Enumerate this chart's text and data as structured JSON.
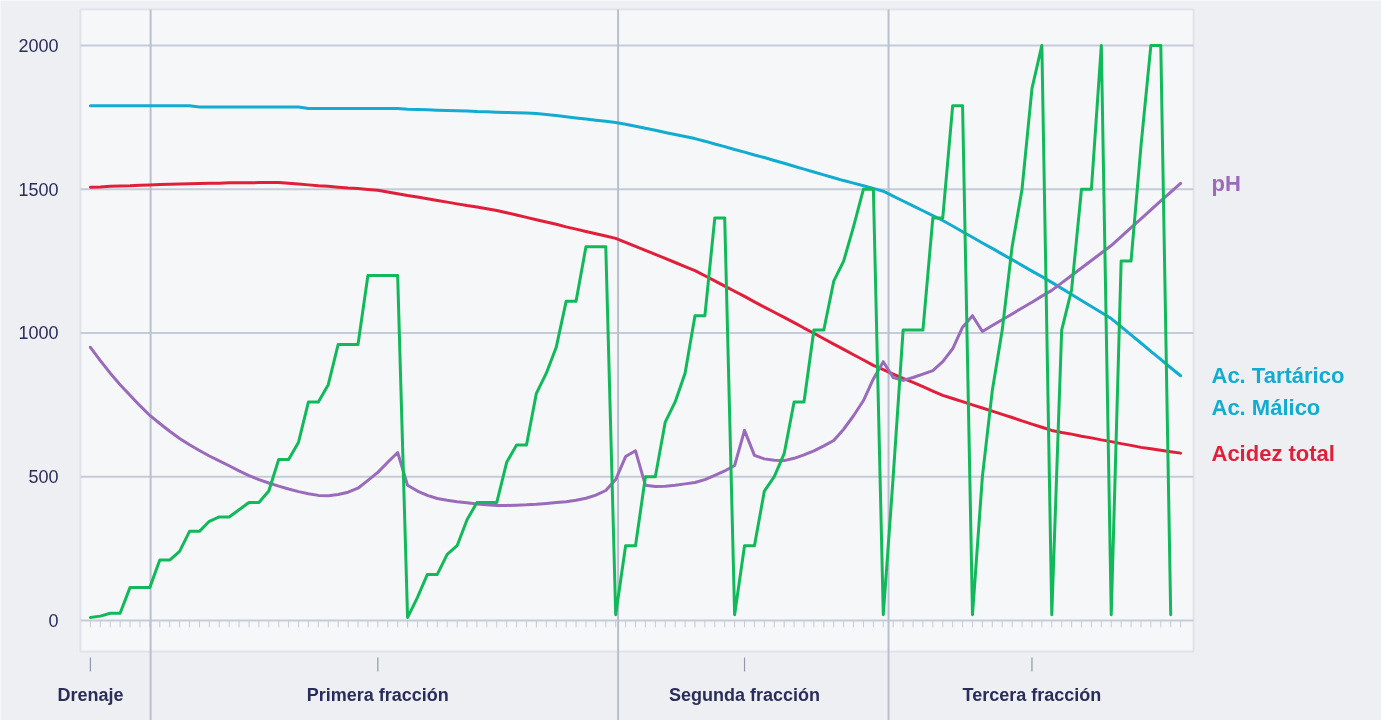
{
  "chart_data": {
    "type": "line",
    "categories": [
      "Drenaje",
      null,
      null,
      null,
      null,
      null,
      null,
      null,
      null,
      null,
      null,
      null,
      null,
      null,
      null,
      null,
      null,
      null,
      null,
      null,
      null,
      null,
      null,
      null,
      null,
      null,
      null,
      null,
      null,
      "Primera fracción",
      null,
      null,
      null,
      null,
      null,
      null,
      null,
      null,
      null,
      null,
      null,
      null,
      null,
      null,
      null,
      null,
      null,
      null,
      null,
      null,
      null,
      null,
      null,
      null,
      null,
      null,
      null,
      null,
      null,
      null,
      null,
      null,
      null,
      null,
      null,
      null,
      "Segunda fracción",
      null,
      null,
      null,
      null,
      null,
      null,
      null,
      null,
      null,
      null,
      null,
      null,
      null,
      null,
      null,
      null,
      null,
      null,
      null,
      null,
      null,
      null,
      null,
      null,
      null,
      null,
      null,
      null,
      "Tercera fracción",
      null,
      null,
      null,
      null,
      null,
      null,
      null,
      null,
      null,
      null,
      null,
      null,
      null,
      null,
      null
    ],
    "ylim": [
      -108,
      2125
    ],
    "yticks": [
      0,
      500,
      1000,
      1500,
      2000
    ],
    "grid": "y",
    "series": [
      {
        "name": "Ac. Tartárico",
        "color": "#12acd0",
        "values": [
          1790,
          1790,
          1790,
          1790,
          1790,
          1790,
          1790,
          1790,
          1790,
          1790,
          1790,
          1786,
          1786,
          1786,
          1786,
          1786,
          1786,
          1786,
          1786,
          1786,
          1786,
          1786,
          1781,
          1781,
          1781,
          1781,
          1781,
          1781,
          1781,
          1781,
          1781,
          1781,
          1778,
          1777,
          1776,
          1775,
          1774,
          1773,
          1772,
          1770,
          1769,
          1768,
          1767,
          1766,
          1765,
          1763,
          1760,
          1756,
          1752,
          1748,
          1744,
          1740,
          1736,
          1732,
          1726,
          1719,
          1712,
          1705,
          1697,
          1690,
          1683,
          1676,
          1667,
          1657,
          1648,
          1638,
          1629,
          1619,
          1610,
          1600,
          1590,
          1580,
          1570,
          1560,
          1550,
          1540,
          1530,
          1521,
          1512,
          1503,
          1493,
          1476,
          1459,
          1442,
          1425,
          1408,
          1391,
          1372,
          1352,
          1333,
          1313,
          1294,
          1274,
          1255,
          1235,
          1215,
          1196,
          1176,
          1155,
          1134,
          1113,
          1092,
          1071,
          1050,
          1022,
          993,
          965,
          936,
          908,
          879,
          851
        ]
      },
      {
        "name": "Acidez total",
        "color": "#e0203a",
        "values": [
          1507,
          1508,
          1510,
          1511,
          1512,
          1514,
          1515,
          1516,
          1517,
          1518,
          1519,
          1520,
          1521,
          1521,
          1522,
          1522,
          1522,
          1523,
          1523,
          1523,
          1521,
          1518,
          1515,
          1512,
          1510,
          1507,
          1504,
          1502,
          1499,
          1496,
          1490,
          1484,
          1478,
          1473,
          1467,
          1461,
          1455,
          1449,
          1443,
          1438,
          1432,
          1426,
          1418,
          1410,
          1402,
          1394,
          1386,
          1378,
          1369,
          1361,
          1353,
          1345,
          1337,
          1329,
          1315,
          1301,
          1287,
          1273,
          1259,
          1245,
          1231,
          1217,
          1199,
          1181,
          1163,
          1145,
          1127,
          1108,
          1090,
          1072,
          1054,
          1036,
          1017,
          999,
          980,
          961,
          943,
          924,
          906,
          887,
          872,
          857,
          842,
          828,
          813,
          798,
          783,
          772,
          761,
          750,
          739,
          728,
          717,
          706,
          694,
          683,
          672,
          661,
          654,
          648,
          641,
          635,
          628,
          622,
          615,
          609,
          602,
          597,
          592,
          587,
          582
        ]
      },
      {
        "name": "pH",
        "color": "#9b6bbb",
        "values": [
          950,
          904,
          860,
          820,
          783,
          747,
          713,
          685,
          658,
          633,
          611,
          591,
          572,
          555,
          538,
          520,
          504,
          490,
          478,
          467,
          457,
          448,
          441,
          435,
          434,
          438,
          446,
          460,
          487,
          515,
          550,
          584,
          470,
          450,
          435,
          424,
          418,
          413,
          409,
          405,
          402,
          400,
          400,
          401,
          402,
          404,
          407,
          410,
          413,
          418,
          425,
          436,
          452,
          490,
          570,
          590,
          470,
          466,
          467,
          470,
          475,
          480,
          490,
          505,
          520,
          539,
          661,
          574,
          562,
          557,
          556,
          564,
          576,
          590,
          607,
          626,
          665,
          712,
          765,
          840,
          900,
          845,
          835,
          845,
          857,
          869,
          900,
          945,
          1020,
          1060,
          1005,
          1026,
          1046,
          1066,
          1087,
          1107,
          1128,
          1148,
          1174,
          1200,
          1226,
          1252,
          1278,
          1304,
          1335,
          1366,
          1397,
          1428,
          1459,
          1490,
          1520
        ]
      },
      {
        "color": "#12b95a",
        "values": [
          10,
          15,
          25,
          25,
          115,
          115,
          115,
          210,
          210,
          240,
          310,
          310,
          345,
          360,
          360,
          385,
          410,
          410,
          450,
          560,
          560,
          620,
          760,
          760,
          820,
          960,
          960,
          960,
          1200,
          1200,
          1200,
          1200,
          10,
          80,
          160,
          160,
          230,
          260,
          350,
          410,
          410,
          410,
          550,
          610,
          610,
          790,
          860,
          950,
          1110,
          1110,
          1300,
          1300,
          1300,
          20,
          260,
          260,
          500,
          500,
          690,
          760,
          860,
          1060,
          1060,
          1400,
          1400,
          20,
          260,
          260,
          450,
          500,
          580,
          760,
          760,
          1010,
          1010,
          1180,
          1250,
          1370,
          1500,
          1500,
          20,
          500,
          1010,
          1010,
          1010,
          1400,
          1400,
          1790,
          1790,
          20,
          500,
          800,
          1010,
          1300,
          1500,
          1850,
          2000,
          20,
          1010,
          1150,
          1500,
          1500,
          2000,
          20,
          1250,
          1250,
          1650,
          2000,
          2000,
          20,
          null
        ]
      }
    ],
    "annotations": [
      "Ac. Málico"
    ]
  }
}
